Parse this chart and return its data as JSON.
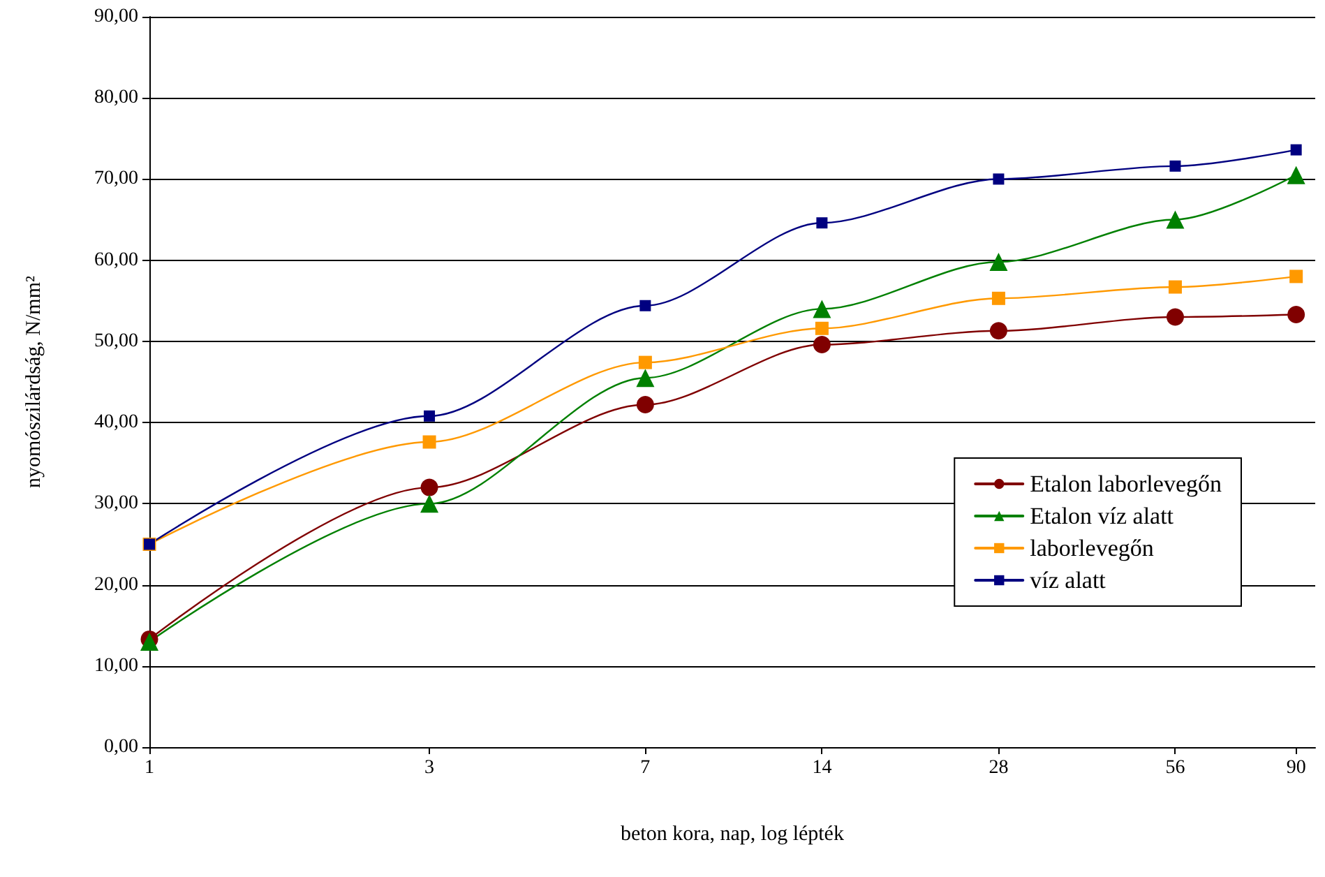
{
  "chart_data": {
    "type": "line",
    "xlabel": "beton kora, nap, log lépték",
    "ylabel": "nyomószilárdság, N/mm²",
    "x": [
      1,
      3,
      7,
      14,
      28,
      56,
      90
    ],
    "series": [
      {
        "name": "Etalon laborlevegőn",
        "color": "#800000",
        "marker": "circle",
        "values": [
          13.3,
          32,
          42.2,
          49.6,
          51.3,
          53,
          53.3
        ]
      },
      {
        "name": "Etalon víz alatt",
        "color": "#008000",
        "marker": "triangle",
        "values": [
          13,
          30,
          45.5,
          54,
          59.8,
          65,
          70.5
        ]
      },
      {
        "name": "laborlevegőn",
        "color": "#ff9900",
        "marker": "square",
        "values": [
          25,
          37.6,
          47.4,
          51.6,
          55.3,
          56.7,
          58
        ]
      },
      {
        "name": "víz alatt",
        "color": "#000080",
        "marker": "square",
        "values": [
          25,
          40.8,
          54.4,
          64.6,
          70,
          71.6,
          73.6
        ]
      }
    ],
    "log": "x",
    "xlim": [
      1,
      97
    ],
    "xticks": [
      1,
      3,
      7,
      14,
      28,
      56,
      90
    ],
    "ylim": [
      0,
      90
    ],
    "yticks": [
      {
        "value": 0,
        "label": "0,00"
      },
      {
        "value": 10,
        "label": "10,00"
      },
      {
        "value": 20,
        "label": "20,00"
      },
      {
        "value": 30,
        "label": "30,00"
      },
      {
        "value": 40,
        "label": "40,00"
      },
      {
        "value": 50,
        "label": "50,00"
      },
      {
        "value": 60,
        "label": "60,00"
      },
      {
        "value": 70,
        "label": "70,00"
      },
      {
        "value": 80,
        "label": "80,00"
      },
      {
        "value": 90,
        "label": "90,00"
      }
    ],
    "grid": "y",
    "legend": "right",
    "line_style": "solid"
  }
}
